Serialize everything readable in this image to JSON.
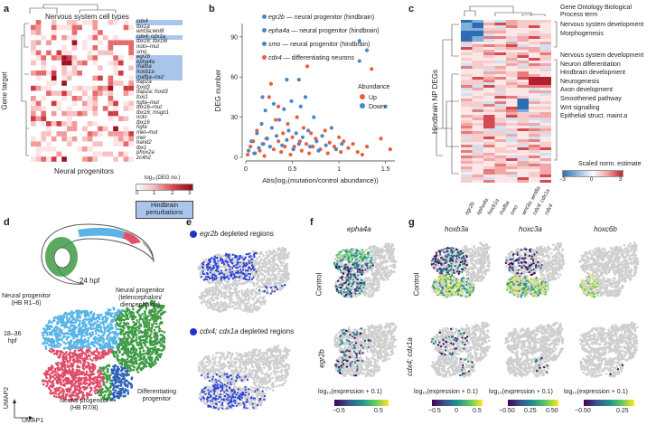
{
  "panels": {
    "a": {
      "letter": "a",
      "title": "Nervous system cell types",
      "ylabel": "Gene target",
      "xlabel": "Neural progenitors",
      "legend_title": "log₁₀(DEG no.)",
      "legend_ticks": [
        "0",
        "1",
        "2",
        "3"
      ],
      "box_label": "Hindbrain\nperturbations",
      "rows": [
        {
          "label": "cdx4",
          "hl": true
        },
        {
          "label": "tbx1a",
          "hl": false
        },
        {
          "label": "wnt3a;wnt8",
          "hl": false
        },
        {
          "label": "cdx4; cdx1a",
          "hl": true
        },
        {
          "label": "tbx16; tbx16l",
          "hl": false
        },
        {
          "label": "noto–mut",
          "hl": false
        },
        {
          "label": "smo",
          "hl": false
        },
        {
          "label": "egr2b",
          "hl": true
        },
        {
          "label": "epha4a",
          "hl": true
        },
        {
          "label": "mafba",
          "hl": true
        },
        {
          "label": "hoxb1a",
          "hl": true
        },
        {
          "label": "mafba–mut",
          "hl": true
        },
        {
          "label": "tfap2a",
          "hl": false
        },
        {
          "label": "foxd3",
          "hl": false
        },
        {
          "label": "tfap2a; foxd3",
          "hl": false
        },
        {
          "label": "foxi1",
          "hl": false
        },
        {
          "label": "hgfa–mut",
          "hl": false
        },
        {
          "label": "tbx16–mut",
          "hl": false
        },
        {
          "label": "tbx16; msgn1",
          "hl": false
        },
        {
          "label": "noto",
          "hl": false
        },
        {
          "label": "tbx16",
          "hl": false
        },
        {
          "label": "hgfa",
          "hl": false
        },
        {
          "label": "met–mut",
          "hl": false
        },
        {
          "label": "met",
          "hl": false
        },
        {
          "label": "hand2",
          "hl": false
        },
        {
          "label": "tbx1",
          "hl": false
        },
        {
          "label": "phox2a",
          "hl": false
        },
        {
          "label": "zc4h2",
          "hl": false
        }
      ]
    },
    "b": {
      "letter": "b",
      "annotations": [
        {
          "gene": "egr2b",
          "text": " — neural progenitor (hindbrain)",
          "color": "#4a87c5"
        },
        {
          "gene": "epha4a",
          "text": " — neural progenitor (hindbrain)",
          "color": "#4a87c5"
        },
        {
          "gene": "smo",
          "text": " — neural progenitor (hindbrain)",
          "color": "#4a87c5"
        },
        {
          "gene": "cdx4",
          "text": " — differentiating neurons",
          "color": "#e8603c"
        }
      ],
      "legend_title": "Abundance",
      "legend_items": [
        {
          "label": "Up",
          "color": "#e8603c"
        },
        {
          "label": "Down",
          "color": "#4a87c5"
        }
      ]
    },
    "c": {
      "letter": "c",
      "ylabel": "Hindbrain NP DEGs",
      "go_header": "Gene Ontology Biological Process term",
      "go_terms_top": [
        "Nervous system development",
        "Morphogenesis"
      ],
      "go_terms_bottom": [
        "Nervous system development",
        "Neuron differentiation",
        "Hindbrain development",
        "Neurogenesis",
        "Axon development",
        "Smoothened pathway",
        "Wnt signalling",
        "Epithelial struct. maint.a"
      ],
      "columns": [
        "egr2b",
        "epha4a",
        "hoxb1a",
        "mafba",
        "smo",
        "wnt3a; wnt8a",
        "cdx4; cdx1a",
        "cdx4"
      ],
      "legend_title": "Scaled norm. estimate",
      "legend_ticks": [
        "−3",
        "0",
        "3"
      ]
    },
    "d": {
      "letter": "d",
      "stage_label": "24 hpf",
      "stage_label2": "18–36\nhpf",
      "labels": {
        "np_hb16": "Neural progenitor\n(HB R1–6)",
        "np_tel": "Neural progenitor\n(telencephalon/\ndiencephalon)",
        "np_hb78": "Neural progenitor\n(HB R7/8)",
        "diff": "Differentiating\nprogenitor"
      },
      "axis_x": "UMAP1",
      "axis_y": "UMAP2"
    },
    "e": {
      "letter": "e",
      "label1_gene": "egr2b",
      "label1_rest": " depleted regions",
      "label2_gene": "cdx4; cdx1a",
      "label2_rest": " depleted regions"
    },
    "f": {
      "letter": "f",
      "gene": "epha4a",
      "row1": "Control",
      "row2": "egr2b",
      "colorbar_title": "log₁₀(expression + 0.1)",
      "ticks": [
        "−0.5",
        "0.5"
      ]
    },
    "g": {
      "letter": "g",
      "genes": [
        "hoxb3a",
        "hoxc3a",
        "hoxc6b"
      ],
      "row1": "Control",
      "row2": "cdx4; cdx1a",
      "colorbars": [
        {
          "title": "log₁₀(expression + 0.1)",
          "ticks": [
            "−0.5",
            "0",
            "0.5"
          ]
        },
        {
          "title": "log₁₀(expression + 0.1)",
          "ticks": [
            "−0.50",
            "0.25",
            "0.50"
          ]
        },
        {
          "title": "log₁₀(expression + 0.1)",
          "ticks": [
            "−0.50",
            "0.25"
          ]
        }
      ]
    }
  },
  "chart_data": {
    "type": "scatter",
    "xlabel": "Abs(log₂(mutation/control abundance))",
    "ylabel": "DEG number",
    "xlim": [
      0,
      1.6
    ],
    "ylim": [
      0,
      100
    ],
    "xticks": [
      0,
      0.5,
      1.0,
      1.5
    ],
    "yticks": [
      0,
      30,
      60,
      90
    ],
    "series": [
      {
        "name": "Up",
        "color": "#e8603c",
        "points": [
          [
            0.02,
            2
          ],
          [
            0.05,
            8
          ],
          [
            0.08,
            12
          ],
          [
            0.1,
            3
          ],
          [
            0.12,
            20
          ],
          [
            0.15,
            5
          ],
          [
            0.18,
            10
          ],
          [
            0.2,
            1
          ],
          [
            0.22,
            14
          ],
          [
            0.25,
            45
          ],
          [
            0.27,
            55
          ],
          [
            0.3,
            6
          ],
          [
            0.32,
            28
          ],
          [
            0.35,
            12
          ],
          [
            0.38,
            4
          ],
          [
            0.4,
            18
          ],
          [
            0.42,
            8
          ],
          [
            0.45,
            25
          ],
          [
            0.48,
            2
          ],
          [
            0.5,
            15
          ],
          [
            0.52,
            8
          ],
          [
            0.55,
            30
          ],
          [
            0.58,
            12
          ],
          [
            0.6,
            5
          ],
          [
            0.62,
            22
          ],
          [
            0.65,
            10
          ],
          [
            0.68,
            3
          ],
          [
            0.7,
            18
          ],
          [
            0.72,
            8
          ],
          [
            0.75,
            14
          ],
          [
            0.8,
            6
          ],
          [
            0.85,
            20
          ],
          [
            0.88,
            3
          ],
          [
            0.9,
            11
          ],
          [
            0.95,
            8
          ],
          [
            1.0,
            15
          ],
          [
            1.02,
            4
          ],
          [
            1.05,
            12
          ],
          [
            1.1,
            7
          ],
          [
            1.15,
            10
          ],
          [
            1.2,
            4
          ],
          [
            1.25,
            2
          ],
          [
            1.3,
            8
          ],
          [
            1.45,
            14
          ],
          [
            1.55,
            6
          ],
          [
            0.66,
            68
          ],
          [
            0.35,
            38
          ]
        ]
      },
      {
        "name": "Down",
        "color": "#4a87c5",
        "points": [
          [
            0.03,
            5
          ],
          [
            0.06,
            12
          ],
          [
            0.09,
            3
          ],
          [
            0.12,
            18
          ],
          [
            0.14,
            7
          ],
          [
            0.17,
            25
          ],
          [
            0.19,
            10
          ],
          [
            0.21,
            35
          ],
          [
            0.23,
            14
          ],
          [
            0.26,
            8
          ],
          [
            0.28,
            22
          ],
          [
            0.3,
            40
          ],
          [
            0.33,
            16
          ],
          [
            0.36,
            28
          ],
          [
            0.39,
            9
          ],
          [
            0.41,
            36
          ],
          [
            0.44,
            13
          ],
          [
            0.46,
            20
          ],
          [
            0.49,
            42
          ],
          [
            0.51,
            6
          ],
          [
            0.54,
            18
          ],
          [
            0.57,
            10
          ],
          [
            0.59,
            38
          ],
          [
            0.61,
            15
          ],
          [
            0.64,
            45
          ],
          [
            0.67,
            20
          ],
          [
            0.69,
            8
          ],
          [
            0.73,
            30
          ],
          [
            0.76,
            12
          ],
          [
            0.78,
            5
          ],
          [
            0.82,
            16
          ],
          [
            0.86,
            9
          ],
          [
            0.92,
            22
          ],
          [
            0.97,
            6
          ],
          [
            1.03,
            10
          ],
          [
            0.18,
            45
          ],
          [
            0.44,
            58
          ],
          [
            0.57,
            58
          ],
          [
            1.5,
            38
          ]
        ]
      }
    ],
    "labeled_points": [
      {
        "gene": "egr2b",
        "x": 1.22,
        "y": 87,
        "color": "#4a87c5"
      },
      {
        "gene": "epha4a",
        "x": 1.3,
        "y": 80,
        "color": "#4a87c5"
      },
      {
        "gene": "smo",
        "x": 1.22,
        "y": 72,
        "color": "#4a87c5"
      },
      {
        "gene": "cdx4",
        "x": 1.35,
        "y": 66,
        "color": "#e8603c"
      }
    ]
  }
}
